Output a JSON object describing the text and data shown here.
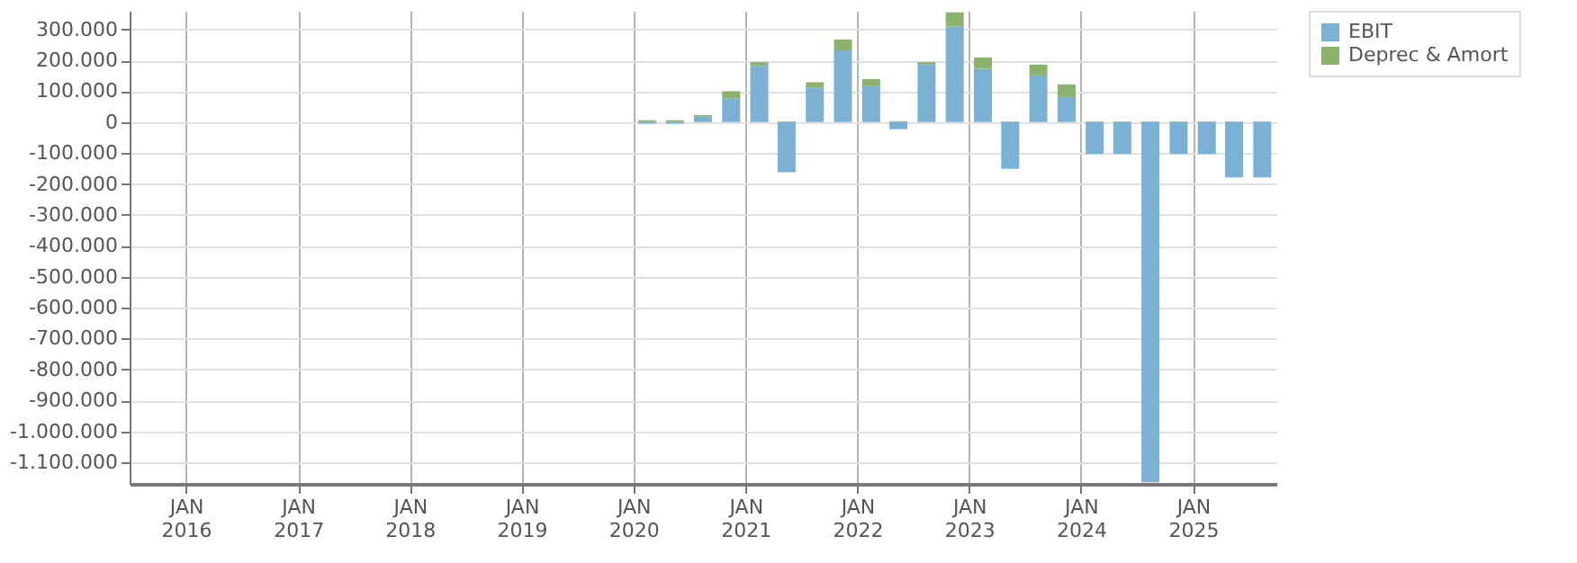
{
  "chart_data": {
    "type": "bar",
    "stacked": true,
    "x": [
      "2020-02-15",
      "2020-05-15",
      "2020-08-15",
      "2020-11-15",
      "2021-02-15",
      "2021-05-15",
      "2021-08-15",
      "2021-11-15",
      "2022-02-15",
      "2022-05-15",
      "2022-08-15",
      "2022-11-15",
      "2023-02-15",
      "2023-05-15",
      "2023-08-15",
      "2023-11-15",
      "2024-02-15",
      "2024-05-15",
      "2024-08-15",
      "2024-11-15",
      "2025-02-15",
      "2025-05-15",
      "2025-08-15"
    ],
    "series": [
      {
        "name": "EBIT",
        "color": "#7ab1d4",
        "values": [
          -5000,
          -5000,
          19000,
          77000,
          182000,
          -162000,
          112000,
          232000,
          116000,
          -23000,
          186000,
          309000,
          172000,
          -151000,
          151000,
          81000,
          -103000,
          -103000,
          -1165000,
          -103000,
          -103000,
          -179000,
          -179000
        ]
      },
      {
        "name": "Deprec & Amort",
        "color": "#8bb36b",
        "values": [
          6000,
          6000,
          4000,
          23000,
          12000,
          2000,
          17000,
          35000,
          23000,
          3000,
          8000,
          46000,
          37000,
          2000,
          35000,
          41000,
          2000,
          2000,
          2000,
          2000,
          2000,
          2000,
          2000
        ]
      }
    ],
    "xlim": [
      "2015-07-01",
      "2025-09-30"
    ],
    "xticks": [
      {
        "value": "2016-01-01",
        "label": "JAN 2016"
      },
      {
        "value": "2017-01-01",
        "label": "JAN 2017"
      },
      {
        "value": "2018-01-01",
        "label": "JAN 2018"
      },
      {
        "value": "2019-01-01",
        "label": "JAN 2019"
      },
      {
        "value": "2020-01-01",
        "label": "JAN 2020"
      },
      {
        "value": "2021-01-01",
        "label": "JAN 2021"
      },
      {
        "value": "2022-01-01",
        "label": "JAN 2022"
      },
      {
        "value": "2023-01-01",
        "label": "JAN 2023"
      },
      {
        "value": "2024-01-01",
        "label": "JAN 2024"
      },
      {
        "value": "2025-01-01",
        "label": "JAN 2025"
      }
    ],
    "ylim": [
      -1170000,
      360000
    ],
    "yticks": [
      {
        "value": 300000,
        "label": "300.000"
      },
      {
        "value": 200000,
        "label": "200.000"
      },
      {
        "value": 100000,
        "label": "100.000"
      },
      {
        "value": 0,
        "label": "0"
      },
      {
        "value": -100000,
        "label": "-100.000"
      },
      {
        "value": -200000,
        "label": "-200.000"
      },
      {
        "value": -300000,
        "label": "-300.000"
      },
      {
        "value": -400000,
        "label": "-400.000"
      },
      {
        "value": -500000,
        "label": "-500.000"
      },
      {
        "value": -600000,
        "label": "-600.000"
      },
      {
        "value": -700000,
        "label": "-700.000"
      },
      {
        "value": -800000,
        "label": "-800.000"
      },
      {
        "value": -900000,
        "label": "-900.000"
      },
      {
        "value": -1000000,
        "label": "-1.000.000"
      },
      {
        "value": -1100000,
        "label": "-1.100.000"
      }
    ],
    "grid": true,
    "legend": "top right"
  }
}
